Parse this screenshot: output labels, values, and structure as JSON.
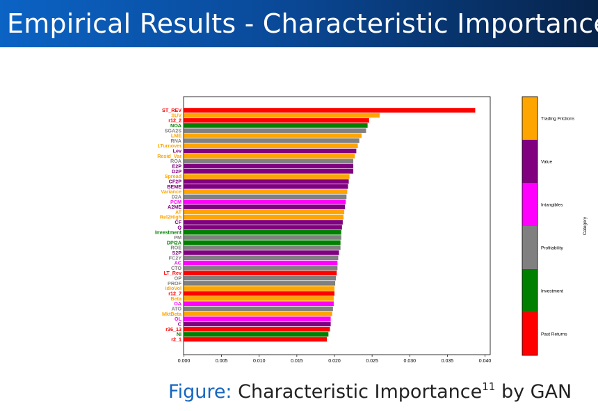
{
  "slide": {
    "title": "Empirical Results - Characteristic Importance",
    "caption_label": "Figure:",
    "caption_text": "Characteristic Importance",
    "caption_footnote": "11",
    "caption_suffix": "by GAN"
  },
  "chart_data": {
    "type": "bar",
    "orientation": "horizontal",
    "xlim": [
      0,
      0.04
    ],
    "xticks": [
      "0.000",
      "0.005",
      "0.010",
      "0.015",
      "0.020",
      "0.025",
      "0.030",
      "0.035",
      "0.040"
    ],
    "xtick_values": [
      0,
      0.005,
      0.01,
      0.015,
      0.02,
      0.025,
      0.03,
      0.035,
      0.04
    ],
    "categories": [
      "ST_REV",
      "SUV",
      "r12_2",
      "NOA",
      "SGA2S",
      "LME",
      "RNA",
      "LTurnover",
      "Lev",
      "Resid_Var",
      "ROA",
      "E2P",
      "D2P",
      "Spread",
      "CF2P",
      "BEME",
      "Variance",
      "D2A",
      "PCM",
      "A2ME",
      "AT",
      "Rel2High",
      "CF",
      "Q",
      "Investment",
      "PM",
      "DPI2A",
      "ROE",
      "S2P",
      "FC2Y",
      "AC",
      "CTO",
      "LT_Rev",
      "OP",
      "PROF",
      "IdioVol",
      "r12_7",
      "Beta",
      "OA",
      "ATO",
      "MktBeta",
      "OL",
      "C",
      "r36_13",
      "NI",
      "r2_1"
    ],
    "values": [
      0.0387,
      0.026,
      0.0246,
      0.0244,
      0.0242,
      0.0236,
      0.0233,
      0.0231,
      0.0229,
      0.0227,
      0.0225,
      0.0225,
      0.0225,
      0.022,
      0.0219,
      0.0218,
      0.0217,
      0.0216,
      0.0215,
      0.0214,
      0.0213,
      0.0212,
      0.0211,
      0.021,
      0.0209,
      0.0209,
      0.0208,
      0.0208,
      0.0206,
      0.0205,
      0.0204,
      0.0204,
      0.0203,
      0.0202,
      0.0201,
      0.02,
      0.02,
      0.0199,
      0.0199,
      0.0198,
      0.0197,
      0.0195,
      0.0195,
      0.0194,
      0.0192,
      0.019
    ],
    "groups": [
      "Past Returns",
      "Trading Frictions",
      "Past Returns",
      "Investment",
      "Profitability",
      "Trading Frictions",
      "Profitability",
      "Trading Frictions",
      "Value",
      "Trading Frictions",
      "Profitability",
      "Value",
      "Value",
      "Trading Frictions",
      "Value",
      "Value",
      "Trading Frictions",
      "Profitability",
      "Intangibles",
      "Value",
      "Trading Frictions",
      "Trading Frictions",
      "Value",
      "Value",
      "Investment",
      "Profitability",
      "Investment",
      "Profitability",
      "Value",
      "Profitability",
      "Intangibles",
      "Profitability",
      "Past Returns",
      "Profitability",
      "Profitability",
      "Trading Frictions",
      "Past Returns",
      "Trading Frictions",
      "Intangibles",
      "Profitability",
      "Trading Frictions",
      "Intangibles",
      "Value",
      "Past Returns",
      "Investment",
      "Past Returns"
    ],
    "legend": {
      "title": "Category",
      "placement": "right",
      "entries": [
        {
          "name": "Trading Frictions",
          "color": "#ffa500"
        },
        {
          "name": "Value",
          "color": "#800080"
        },
        {
          "name": "Intangibles",
          "color": "#ff00ff"
        },
        {
          "name": "Profitability",
          "color": "#808080"
        },
        {
          "name": "Investment",
          "color": "#008000"
        },
        {
          "name": "Past Returns",
          "color": "#ff0000"
        }
      ]
    }
  }
}
